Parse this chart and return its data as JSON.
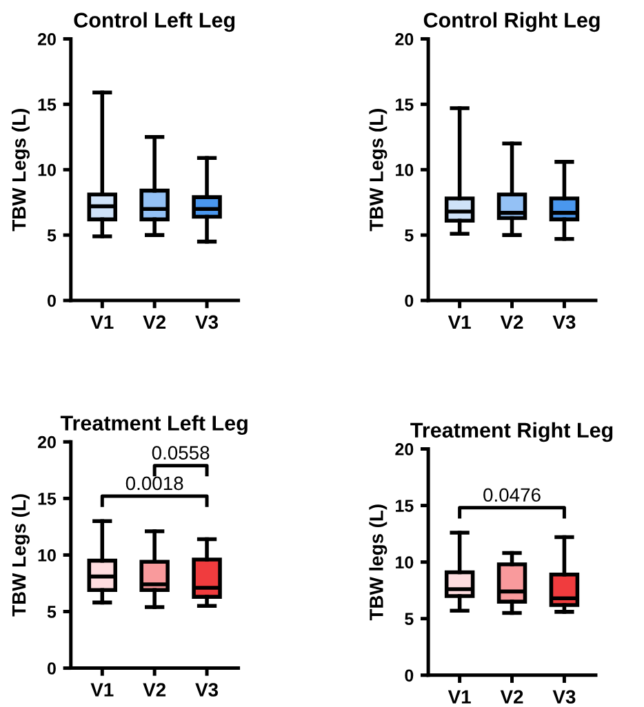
{
  "chart_data": [
    {
      "type": "box",
      "title": "Control Left Leg",
      "ylabel": "TBW Legs (L)",
      "categories": [
        "V1",
        "V2",
        "V3"
      ],
      "colors": [
        "#cfe2f8",
        "#94c1f5",
        "#4a97ee"
      ],
      "ylim": [
        0,
        20
      ],
      "yticks": [
        0,
        5,
        10,
        15,
        20
      ],
      "boxes": [
        {
          "low": 4.9,
          "q1": 6.2,
          "median": 7.2,
          "q3": 8.1,
          "high": 15.9
        },
        {
          "low": 5.0,
          "q1": 6.2,
          "median": 7.0,
          "q3": 8.4,
          "high": 12.5
        },
        {
          "low": 4.5,
          "q1": 6.4,
          "median": 7.0,
          "q3": 7.9,
          "high": 10.9
        }
      ]
    },
    {
      "type": "box",
      "title": "Control Right Leg",
      "ylabel": "TBW Legs (L)",
      "categories": [
        "V1",
        "V2",
        "V3"
      ],
      "colors": [
        "#cfe2f8",
        "#94c1f5",
        "#4a97ee"
      ],
      "ylim": [
        0,
        20
      ],
      "yticks": [
        0,
        5,
        10,
        15,
        20
      ],
      "boxes": [
        {
          "low": 5.1,
          "q1": 6.1,
          "median": 6.8,
          "q3": 7.8,
          "high": 14.7
        },
        {
          "low": 5.0,
          "q1": 6.3,
          "median": 6.7,
          "q3": 8.1,
          "high": 12.0
        },
        {
          "low": 4.7,
          "q1": 6.2,
          "median": 6.7,
          "q3": 7.8,
          "high": 10.6
        }
      ]
    },
    {
      "type": "box",
      "title": "Treatment Left Leg",
      "ylabel": "TBW Legs (L)",
      "categories": [
        "V1",
        "V2",
        "V3"
      ],
      "colors": [
        "#fddcdf",
        "#f99a9c",
        "#f03c3e"
      ],
      "ylim": [
        0,
        20
      ],
      "yticks": [
        0,
        5,
        10,
        15,
        20
      ],
      "boxes": [
        {
          "low": 5.8,
          "q1": 6.9,
          "median": 8.1,
          "q3": 9.5,
          "high": 13.0
        },
        {
          "low": 5.4,
          "q1": 6.9,
          "median": 7.4,
          "q3": 9.4,
          "high": 12.1
        },
        {
          "low": 5.5,
          "q1": 6.3,
          "median": 7.1,
          "q3": 9.6,
          "high": 11.4
        }
      ],
      "annotations": [
        "0.0018",
        "0.0558"
      ]
    },
    {
      "type": "box",
      "title": "Treatment Right Leg",
      "ylabel": "TBW legs (L)",
      "categories": [
        "V1",
        "V2",
        "V3"
      ],
      "colors": [
        "#fddcdf",
        "#f99a9c",
        "#f03c3e"
      ],
      "ylim": [
        0,
        20
      ],
      "yticks": [
        0,
        5,
        10,
        15,
        20
      ],
      "boxes": [
        {
          "low": 5.7,
          "q1": 7.0,
          "median": 7.6,
          "q3": 9.1,
          "high": 12.6
        },
        {
          "low": 5.5,
          "q1": 6.5,
          "median": 7.4,
          "q3": 9.8,
          "high": 10.8
        },
        {
          "low": 5.6,
          "q1": 6.2,
          "median": 6.8,
          "q3": 8.9,
          "high": 12.2
        }
      ],
      "annotations": [
        "0.0476"
      ]
    }
  ]
}
